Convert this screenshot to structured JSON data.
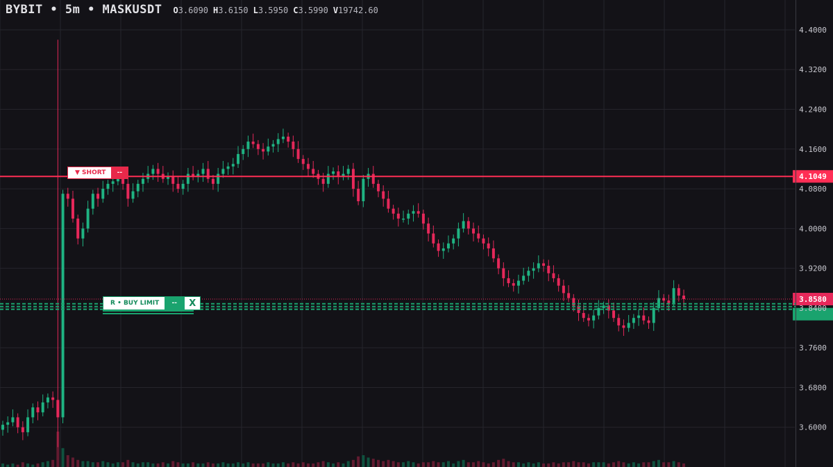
{
  "header": {
    "symbol_line": "BYBIT • 5m • MASKUSDT",
    "o_key": "O",
    "o_val": "3.6090",
    "h_key": "H",
    "h_val": "3.6150",
    "l_key": "L",
    "l_val": "3.5950",
    "c_key": "C",
    "c_val": "3.5990",
    "v_key": "V",
    "v_val": "19742.60"
  },
  "orders": {
    "short_label": "▼ SHORT",
    "short_btn": "--",
    "buy_label": "R • BUY LIMIT",
    "buy_btn": "--",
    "buy_close": "X"
  },
  "colors": {
    "bull": "#1fb382",
    "bear": "#e6285a",
    "short_line": "#ff2e55",
    "buy_line": "#1aa36e",
    "grid": "#26252c",
    "axis_text": "#c8c8cf"
  },
  "chart_data": {
    "type": "candlestick",
    "timeframe": "5m",
    "symbol": "MASKUSDT",
    "exchange": "BYBIT",
    "ylim": [
      3.52,
      4.46
    ],
    "y_ticks": [
      "4.4000",
      "4.3200",
      "4.2400",
      "4.1600",
      "4.0800",
      "4.0000",
      "3.9200",
      "3.8400",
      "3.7600",
      "3.6800",
      "3.6000"
    ],
    "short_level": {
      "label": "4.1049",
      "value": 4.1049
    },
    "last_price": {
      "label": "3.8580",
      "value": 3.858
    },
    "buy_limit_level": {
      "value": 3.843
    },
    "close_path": [
      3.605,
      3.61,
      3.62,
      3.6,
      3.59,
      3.62,
      3.64,
      3.63,
      3.65,
      3.66,
      3.655,
      3.62,
      4.07,
      4.06,
      4.02,
      3.98,
      4.0,
      4.04,
      4.07,
      4.06,
      4.08,
      4.09,
      4.095,
      4.1,
      4.09,
      4.06,
      4.075,
      4.09,
      4.1,
      4.11,
      4.12,
      4.11,
      4.1,
      4.105,
      4.09,
      4.08,
      4.09,
      4.11,
      4.105,
      4.11,
      4.12,
      4.1,
      4.09,
      4.11,
      4.12,
      4.125,
      4.13,
      4.15,
      4.16,
      4.175,
      4.17,
      4.16,
      4.155,
      4.165,
      4.17,
      4.18,
      4.185,
      4.175,
      4.16,
      4.14,
      4.13,
      4.12,
      4.11,
      4.1,
      4.09,
      4.11,
      4.115,
      4.105,
      4.11,
      4.12,
      4.08,
      4.055,
      4.1,
      4.11,
      4.09,
      4.075,
      4.06,
      4.04,
      4.03,
      4.02,
      4.02,
      4.03,
      4.035,
      4.03,
      4.01,
      3.99,
      3.97,
      3.955,
      3.96,
      3.97,
      3.98,
      4.0,
      4.015,
      4.0,
      3.99,
      3.98,
      3.97,
      3.96,
      3.94,
      3.92,
      3.9,
      3.89,
      3.885,
      3.895,
      3.905,
      3.915,
      3.92,
      3.93,
      3.925,
      3.91,
      3.9,
      3.885,
      3.87,
      3.86,
      3.845,
      3.83,
      3.82,
      3.815,
      3.825,
      3.84,
      3.845,
      3.835,
      3.82,
      3.805,
      3.8,
      3.81,
      3.82,
      3.825,
      3.815,
      3.81,
      3.84,
      3.86,
      3.855,
      3.85,
      3.88,
      3.865,
      3.858
    ],
    "spike": {
      "index": 11,
      "high": 4.38,
      "low": 3.56
    },
    "volume": [
      3,
      2,
      3,
      2,
      4,
      3,
      2,
      3,
      4,
      5,
      6,
      30,
      16,
      10,
      8,
      6,
      5,
      5,
      4,
      4,
      5,
      4,
      3,
      4,
      4,
      6,
      4,
      3,
      4,
      4,
      3,
      3,
      4,
      3,
      5,
      4,
      3,
      3,
      4,
      3,
      3,
      4,
      3,
      3,
      4,
      3,
      3,
      4,
      3,
      4,
      3,
      3,
      3,
      4,
      3,
      3,
      4,
      3,
      4,
      3,
      4,
      3,
      3,
      4,
      5,
      4,
      3,
      4,
      3,
      5,
      6,
      9,
      10,
      8,
      7,
      6,
      5,
      6,
      5,
      4,
      4,
      5,
      4,
      3,
      4,
      4,
      5,
      4,
      4,
      5,
      3,
      5,
      6,
      4,
      4,
      5,
      4,
      3,
      4,
      6,
      7,
      5,
      4,
      4,
      3,
      4,
      3,
      4,
      3,
      3,
      4,
      3,
      4,
      4,
      5,
      4,
      4,
      3,
      4,
      4,
      4,
      3,
      4,
      5,
      4,
      3,
      4,
      3,
      4,
      4,
      5,
      6,
      4,
      4,
      5,
      4,
      3
    ]
  }
}
